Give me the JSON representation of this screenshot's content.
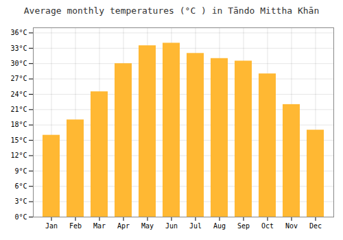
{
  "chart_data": {
    "type": "bar",
    "title": "Average monthly temperatures (°C ) in Tāndo Mittha Khān",
    "categories": [
      "Jan",
      "Feb",
      "Mar",
      "Apr",
      "May",
      "Jun",
      "Jul",
      "Aug",
      "Sep",
      "Oct",
      "Nov",
      "Dec"
    ],
    "values": [
      16.0,
      19.0,
      24.5,
      30.0,
      33.5,
      34.0,
      32.0,
      31.0,
      30.5,
      28.0,
      22.0,
      17.0
    ],
    "color": "#FFB833",
    "ylim": [
      0,
      37
    ],
    "yticks": [
      {
        "value": 0,
        "label": "0°C"
      },
      {
        "value": 3,
        "label": "3°C"
      },
      {
        "value": 6,
        "label": "6°C"
      },
      {
        "value": 9,
        "label": "9°C"
      },
      {
        "value": 12,
        "label": "12°C"
      },
      {
        "value": 15,
        "label": "15°C"
      },
      {
        "value": 18,
        "label": "18°C"
      },
      {
        "value": 21,
        "label": "21°C"
      },
      {
        "value": 24,
        "label": "24°C"
      },
      {
        "value": 27,
        "label": "27°C"
      },
      {
        "value": 30,
        "label": "30°C"
      },
      {
        "value": 33,
        "label": "33°C"
      },
      {
        "value": 36,
        "label": "36°C"
      }
    ],
    "grid": true
  }
}
